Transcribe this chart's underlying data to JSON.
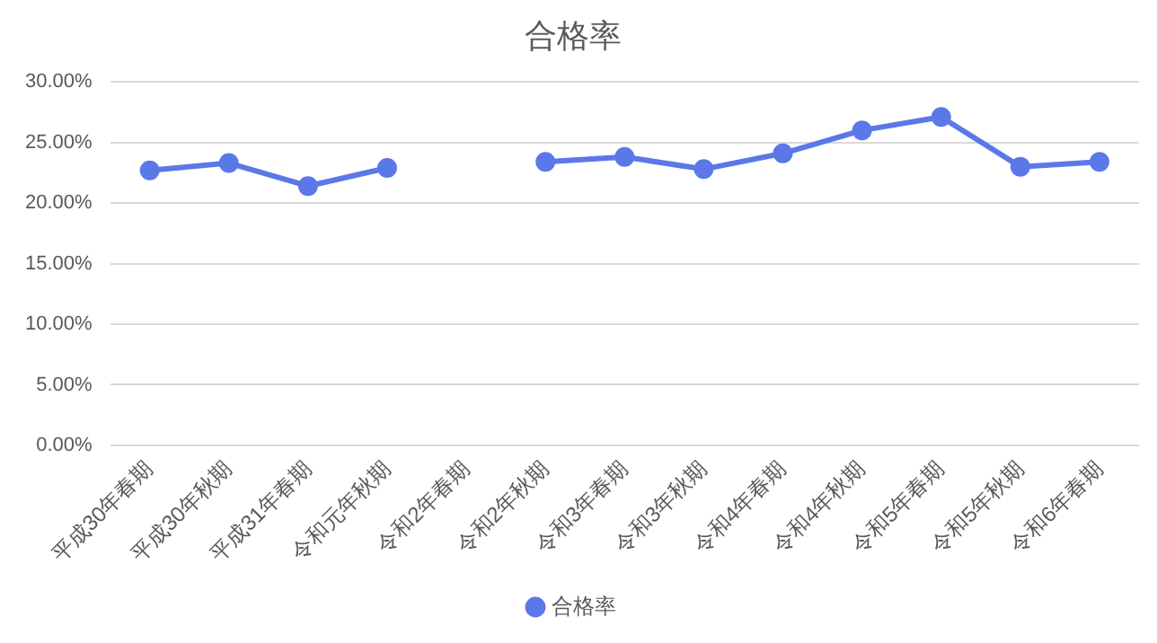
{
  "chart_data": {
    "type": "line",
    "title": "合格率",
    "categories": [
      "平成30年春期",
      "平成30年秋期",
      "平成31年春期",
      "令和元年秋期",
      "令和2年春期",
      "令和2年秋期",
      "令和3年春期",
      "令和3年秋期",
      "令和4年春期",
      "令和4年秋期",
      "令和5年春期",
      "令和5年秋期",
      "令和6年春期"
    ],
    "series": [
      {
        "name": "合格率",
        "color": "#5b78e8",
        "values": [
          22.7,
          23.3,
          21.4,
          22.9,
          null,
          23.4,
          23.8,
          22.8,
          24.1,
          26.0,
          27.1,
          23.0,
          23.4
        ]
      }
    ],
    "ylim": [
      0,
      30
    ],
    "yticks": [
      {
        "value": 0,
        "label": "0.00%"
      },
      {
        "value": 5,
        "label": "5.00%"
      },
      {
        "value": 10,
        "label": "10.00%"
      },
      {
        "value": 15,
        "label": "15.00%"
      },
      {
        "value": 20,
        "label": "20.00%"
      },
      {
        "value": 25,
        "label": "25.00%"
      },
      {
        "value": 30,
        "label": "30.00%"
      }
    ],
    "grid": "y",
    "legend": "bottom",
    "marker": "circle",
    "line_style": "solid"
  }
}
